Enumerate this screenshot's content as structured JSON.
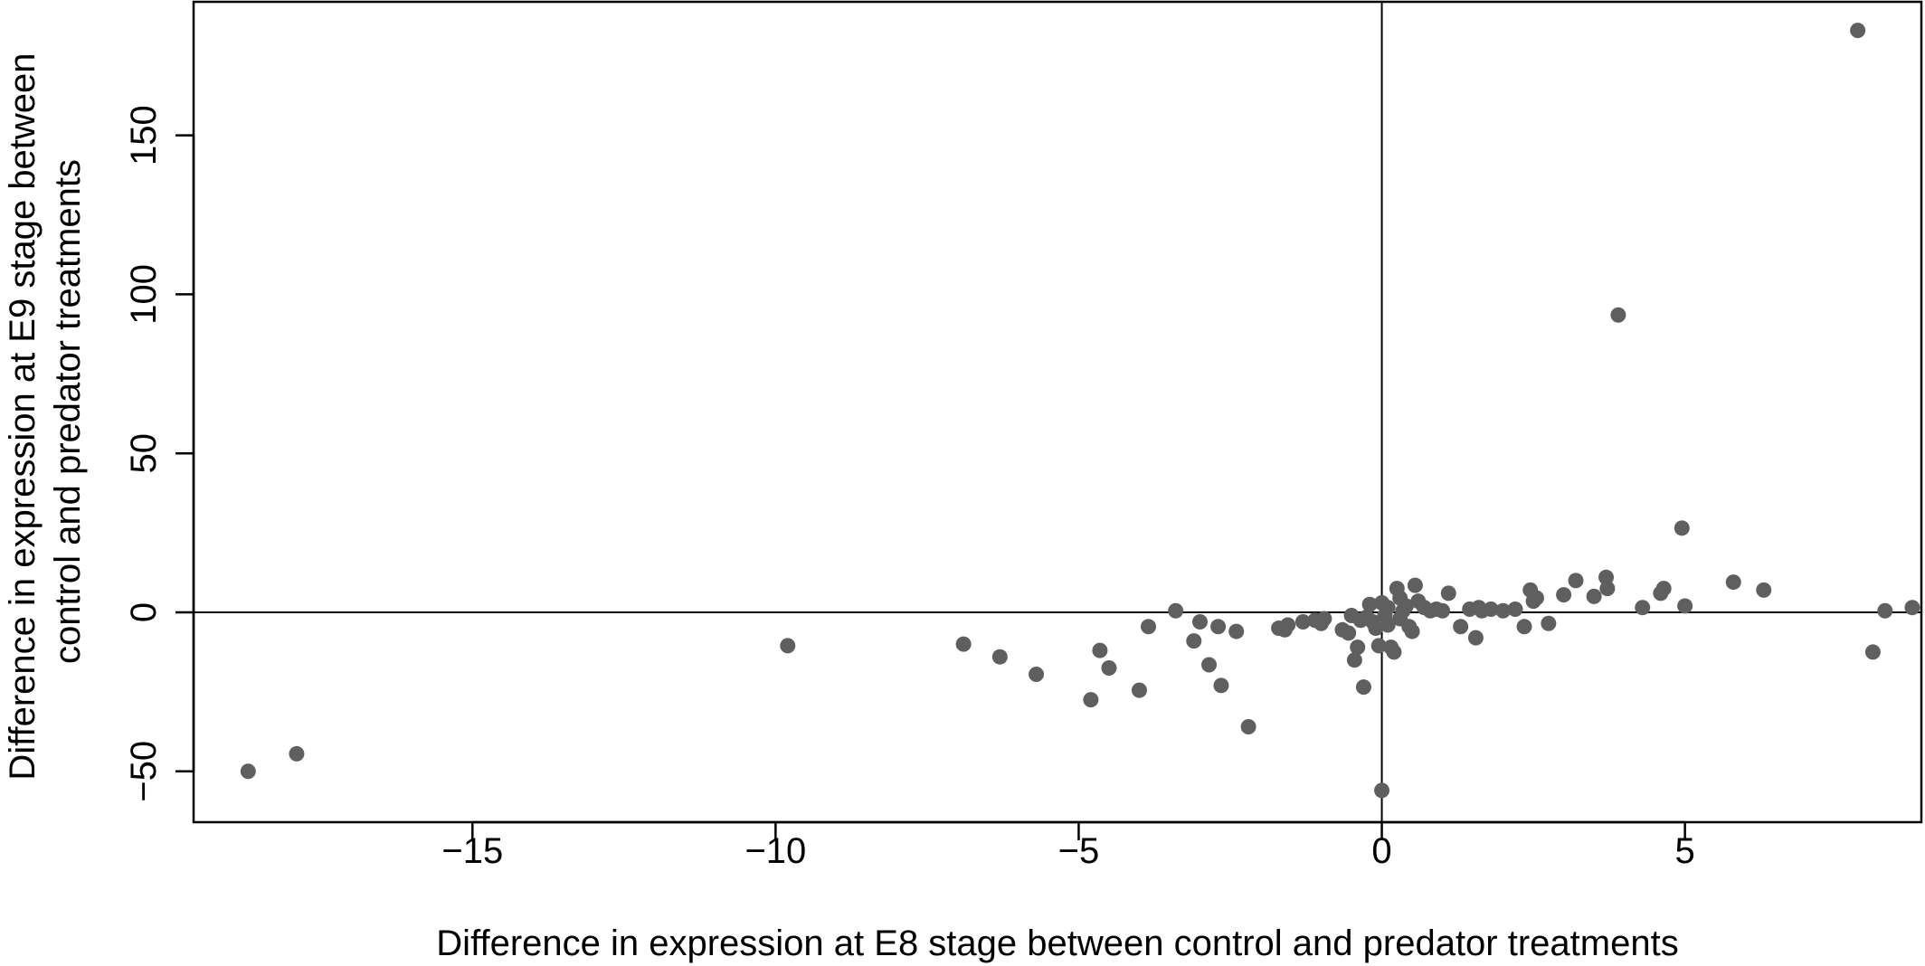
{
  "chart_data": {
    "type": "scatter",
    "title": "",
    "xlabel": "Difference in expression at E8 stage between control and predator treatments",
    "ylabel_lines": [
      "Difference in expression at E9 stage between",
      "control and predator treatments"
    ],
    "xlim": [
      -19.6,
      8.9
    ],
    "ylim": [
      -66,
      192
    ],
    "xticks": [
      -15,
      -10,
      -5,
      0,
      5
    ],
    "xtick_labels": [
      "−15",
      "−10",
      "−5",
      "0",
      "5"
    ],
    "yticks": [
      -50,
      0,
      50,
      100,
      150
    ],
    "ytick_labels": [
      "−50",
      "0",
      "50",
      "100",
      "150"
    ],
    "reference_lines": {
      "x": 0,
      "y": 0
    },
    "grid": false,
    "marker_color": "#5f5f5f",
    "points": [
      {
        "x": -18.7,
        "y": -50
      },
      {
        "x": -17.9,
        "y": -44.5
      },
      {
        "x": -9.8,
        "y": -10.5
      },
      {
        "x": -6.9,
        "y": -10
      },
      {
        "x": -6.3,
        "y": -14
      },
      {
        "x": -5.7,
        "y": -19.5
      },
      {
        "x": -4.8,
        "y": -27.5
      },
      {
        "x": -4.65,
        "y": -12
      },
      {
        "x": -4.5,
        "y": -17.5
      },
      {
        "x": -4.0,
        "y": -24.5
      },
      {
        "x": -3.85,
        "y": -4.5
      },
      {
        "x": -3.4,
        "y": 0.5
      },
      {
        "x": -3.1,
        "y": -9
      },
      {
        "x": -3.0,
        "y": -3
      },
      {
        "x": -2.85,
        "y": -16.5
      },
      {
        "x": -2.7,
        "y": -4.5
      },
      {
        "x": -2.65,
        "y": -23
      },
      {
        "x": -2.4,
        "y": -6
      },
      {
        "x": -2.2,
        "y": -36
      },
      {
        "x": -1.7,
        "y": -5
      },
      {
        "x": -1.6,
        "y": -5.5
      },
      {
        "x": -1.55,
        "y": -4
      },
      {
        "x": -1.3,
        "y": -3
      },
      {
        "x": -1.1,
        "y": -2.5
      },
      {
        "x": -1.0,
        "y": -3.5
      },
      {
        "x": -0.95,
        "y": -2
      },
      {
        "x": -0.65,
        "y": -5.5
      },
      {
        "x": -0.55,
        "y": -6.5
      },
      {
        "x": -0.5,
        "y": -1
      },
      {
        "x": -0.45,
        "y": -15
      },
      {
        "x": -0.4,
        "y": -11
      },
      {
        "x": -0.35,
        "y": -2.5
      },
      {
        "x": -0.25,
        "y": -1.5
      },
      {
        "x": -0.3,
        "y": -23.5
      },
      {
        "x": -0.2,
        "y": 2.5
      },
      {
        "x": -0.15,
        "y": -3
      },
      {
        "x": -0.1,
        "y": -5
      },
      {
        "x": -0.05,
        "y": -10.5
      },
      {
        "x": 0.0,
        "y": -56
      },
      {
        "x": 0.0,
        "y": 3
      },
      {
        "x": 0.05,
        "y": -1
      },
      {
        "x": 0.1,
        "y": 1.5
      },
      {
        "x": 0.15,
        "y": -11
      },
      {
        "x": 0.1,
        "y": -4
      },
      {
        "x": 0.2,
        "y": -12.5
      },
      {
        "x": 0.25,
        "y": 7.5
      },
      {
        "x": 0.3,
        "y": 4.5
      },
      {
        "x": 0.3,
        "y": -2
      },
      {
        "x": 0.35,
        "y": 0.5
      },
      {
        "x": 0.4,
        "y": 2
      },
      {
        "x": 0.45,
        "y": -4.5
      },
      {
        "x": 0.5,
        "y": -6
      },
      {
        "x": 0.55,
        "y": 8.5
      },
      {
        "x": 0.6,
        "y": 3.5
      },
      {
        "x": 0.7,
        "y": 1.5
      },
      {
        "x": 0.8,
        "y": 0.5
      },
      {
        "x": 0.9,
        "y": 1
      },
      {
        "x": 1.0,
        "y": 0.5
      },
      {
        "x": 1.1,
        "y": 6
      },
      {
        "x": 1.3,
        "y": -4.5
      },
      {
        "x": 1.45,
        "y": 1
      },
      {
        "x": 1.55,
        "y": -8
      },
      {
        "x": 1.6,
        "y": 1.5
      },
      {
        "x": 1.65,
        "y": 0.5
      },
      {
        "x": 1.8,
        "y": 1
      },
      {
        "x": 2.0,
        "y": 0.5
      },
      {
        "x": 2.2,
        "y": 1
      },
      {
        "x": 2.35,
        "y": -4.5
      },
      {
        "x": 2.45,
        "y": 7
      },
      {
        "x": 2.5,
        "y": 3.5
      },
      {
        "x": 2.55,
        "y": 4.5
      },
      {
        "x": 2.75,
        "y": -3.5
      },
      {
        "x": 3.0,
        "y": 5.5
      },
      {
        "x": 3.2,
        "y": 10
      },
      {
        "x": 3.5,
        "y": 5
      },
      {
        "x": 3.7,
        "y": 11
      },
      {
        "x": 3.72,
        "y": 7.5
      },
      {
        "x": 3.9,
        "y": 93.5
      },
      {
        "x": 4.3,
        "y": 1.5
      },
      {
        "x": 4.6,
        "y": 6
      },
      {
        "x": 4.65,
        "y": 7.5
      },
      {
        "x": 4.95,
        "y": 26.5
      },
      {
        "x": 5.0,
        "y": 2
      },
      {
        "x": 5.8,
        "y": 9.5
      },
      {
        "x": 6.3,
        "y": 7
      },
      {
        "x": 7.85,
        "y": 183
      },
      {
        "x": 8.1,
        "y": -12.5
      },
      {
        "x": 8.3,
        "y": 0.5
      },
      {
        "x": 8.75,
        "y": 1.5
      }
    ]
  }
}
